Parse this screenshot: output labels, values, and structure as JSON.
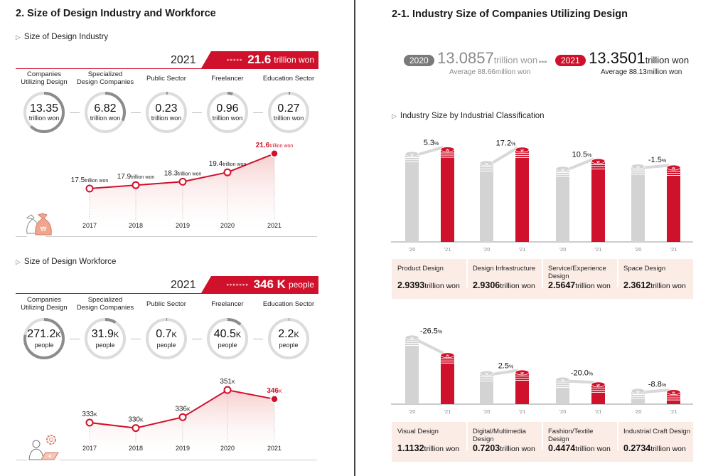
{
  "left": {
    "title": "2. Size of Design Industry and Workforce",
    "industry": {
      "subtitle": "Size of Design Industry",
      "year": "2021",
      "total_value": "21.6",
      "total_unit": "trillion won",
      "categories": [
        {
          "label_l1": "Companies",
          "label_l2": "Utilizing Design",
          "value": "13.35",
          "unit": "trillion won",
          "share": 0.62
        },
        {
          "label_l1": "Specialized",
          "label_l2": "Design Companies",
          "value": "6.82",
          "unit": "trillion won",
          "share": 0.32
        },
        {
          "label_l1": "",
          "label_l2": "Public Sector",
          "value": "0.23",
          "unit": "trillion won",
          "share": 0.011
        },
        {
          "label_l1": "",
          "label_l2": "Freelancer",
          "value": "0.96",
          "unit": "trillion won",
          "share": 0.044
        },
        {
          "label_l1": "",
          "label_l2": "Education Sector",
          "value": "0.27",
          "unit": "trillion won",
          "share": 0.013
        }
      ]
    },
    "workforce": {
      "subtitle": "Size of Design Workforce",
      "year": "2021",
      "total_value": "346 K",
      "total_unit": "people",
      "categories": [
        {
          "label_l1": "Companies",
          "label_l2": "Utilizing Design",
          "value": "271.2",
          "suffix": "K",
          "unit": "people",
          "share": 0.78
        },
        {
          "label_l1": "Specialized",
          "label_l2": "Design Companies",
          "value": "31.9",
          "suffix": "K",
          "unit": "people",
          "share": 0.09
        },
        {
          "label_l1": "",
          "label_l2": "Public Sector",
          "value": "0.7",
          "suffix": "K",
          "unit": "people",
          "share": 0.002
        },
        {
          "label_l1": "",
          "label_l2": "Freelancer",
          "value": "40.5",
          "suffix": "K",
          "unit": "people",
          "share": 0.117
        },
        {
          "label_l1": "",
          "label_l2": "Education Sector",
          "value": "2.2",
          "suffix": "K",
          "unit": "people",
          "share": 0.006
        }
      ]
    }
  },
  "right": {
    "title": "2-1. Industry Size of Companies Utilizing Design",
    "summary": {
      "prev_year": "2020",
      "prev_value": "13.0857",
      "prev_unit": "trillion won",
      "prev_avg": "Average 88.66million won",
      "cur_year": "2021",
      "cur_value": "13.3501",
      "cur_unit": "trillion won",
      "cur_avg": "Average 88.13million won",
      "arrows": "▸▸▸"
    },
    "classification_subtitle": "Industry Size by Industrial Classification",
    "value_unit": "trillion won"
  },
  "colors": {
    "accent": "#d0112b",
    "gray_bar": "#d3d3d3",
    "box_bg": "#fbece6"
  },
  "chart_data": [
    {
      "type": "line",
      "title": "Size of Design Industry",
      "x": [
        "2017",
        "2018",
        "2019",
        "2020",
        "2021"
      ],
      "values": [
        17.5,
        17.9,
        18.3,
        19.4,
        21.6
      ],
      "labels": [
        "17.5",
        "17.9",
        "18.3",
        "19.4",
        "21.6"
      ],
      "unit": "trillion won",
      "highlight_last": true,
      "ylim": [
        15,
        22
      ]
    },
    {
      "type": "line",
      "title": "Size of Design Workforce",
      "x": [
        "2017",
        "2018",
        "2019",
        "2020",
        "2021"
      ],
      "values": [
        333,
        330,
        336,
        351,
        346
      ],
      "labels": [
        "333",
        "330",
        "336",
        "351",
        "346"
      ],
      "unit": "K",
      "highlight_last": true,
      "ylim": [
        320,
        355
      ]
    },
    {
      "type": "bar",
      "title": "Industry Size by Industrial Classification (1)",
      "categories": [
        "Product Design",
        "Design Infrastructure",
        "Service/Experience Design",
        "Space Design"
      ],
      "x_ticks": [
        "'20",
        "'21"
      ],
      "series": [
        {
          "name": "'20",
          "values": [
            2.7915,
            2.5006,
            2.321,
            2.3972
          ]
        },
        {
          "name": "'21",
          "values": [
            2.9393,
            2.9306,
            2.5647,
            2.3612
          ]
        }
      ],
      "value_labels": [
        "2.9393",
        "2.9306",
        "2.5647",
        "2.3612"
      ],
      "change_pct": [
        "5.3",
        "17.2",
        "10.5",
        "-1.5"
      ],
      "unit": "trillion won",
      "ylim": [
        0,
        3.3
      ]
    },
    {
      "type": "bar",
      "title": "Industry Size by Industrial Classification (2)",
      "categories": [
        "Visual Design",
        "Digital/Multimedia Design",
        "Fashion/Textile Design",
        "Industrial Craft Design"
      ],
      "x_ticks": [
        "'20",
        "'21"
      ],
      "series": [
        {
          "name": "'20",
          "values": [
            1.5146,
            0.7027,
            0.5593,
            0.2998
          ]
        },
        {
          "name": "'21",
          "values": [
            1.1132,
            0.7203,
            0.4474,
            0.2734
          ]
        }
      ],
      "value_labels": [
        "1.1132",
        "0.7203",
        "0.4474",
        "0.2734"
      ],
      "change_pct": [
        "-26.5",
        "2.5",
        "-20.0",
        "-8.8"
      ],
      "unit": "trillion won",
      "ylim": [
        0,
        1.7
      ]
    }
  ]
}
